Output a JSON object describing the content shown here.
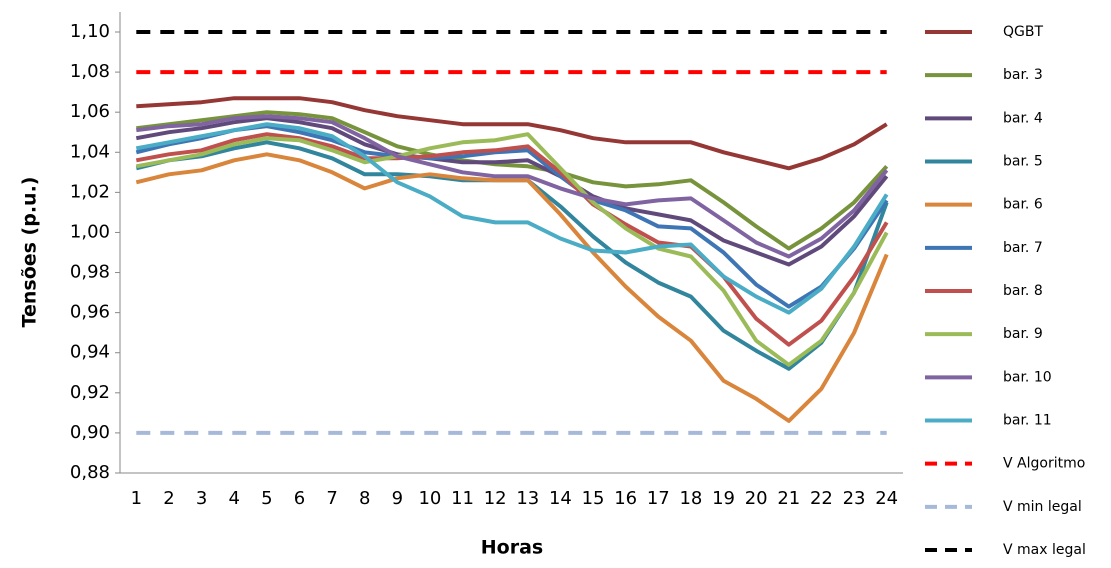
{
  "chart_data": {
    "type": "line",
    "xlabel": "Horas",
    "ylabel": "Tensões (p.u.)",
    "categories": [
      "1",
      "2",
      "3",
      "4",
      "5",
      "6",
      "7",
      "8",
      "9",
      "10",
      "11",
      "12",
      "13",
      "14",
      "15",
      "16",
      "17",
      "18",
      "19",
      "20",
      "21",
      "22",
      "23",
      "24"
    ],
    "ylim": [
      0.88,
      1.1
    ],
    "yticks": [
      {
        "value": 0.88,
        "label": "0,88"
      },
      {
        "value": 0.9,
        "label": "0,90"
      },
      {
        "value": 0.92,
        "label": "0,92"
      },
      {
        "value": 0.94,
        "label": "0,94"
      },
      {
        "value": 0.96,
        "label": "0,96"
      },
      {
        "value": 0.98,
        "label": "0,98"
      },
      {
        "value": 1.0,
        "label": "1,00"
      },
      {
        "value": 1.02,
        "label": "1,02"
      },
      {
        "value": 1.04,
        "label": "1,04"
      },
      {
        "value": 1.06,
        "label": "1,06"
      },
      {
        "value": 1.08,
        "label": "1,08"
      },
      {
        "value": 1.1,
        "label": "1,10"
      }
    ],
    "legend": "right",
    "series": [
      {
        "name": "QGBT",
        "color": "#953735",
        "values": [
          1.063,
          1.064,
          1.065,
          1.067,
          1.067,
          1.067,
          1.065,
          1.061,
          1.058,
          1.056,
          1.054,
          1.054,
          1.054,
          1.051,
          1.047,
          1.045,
          1.045,
          1.045,
          1.04,
          1.036,
          1.032,
          1.037,
          1.044,
          1.054
        ]
      },
      {
        "name": "bar. 3",
        "color": "#77933c",
        "values": [
          1.052,
          1.054,
          1.056,
          1.058,
          1.06,
          1.059,
          1.057,
          1.05,
          1.043,
          1.039,
          1.036,
          1.034,
          1.033,
          1.03,
          1.025,
          1.023,
          1.024,
          1.026,
          1.015,
          1.003,
          0.992,
          1.002,
          1.015,
          1.033
        ]
      },
      {
        "name": "bar. 4",
        "color": "#604a7b",
        "values": [
          1.047,
          1.05,
          1.052,
          1.055,
          1.057,
          1.055,
          1.052,
          1.044,
          1.039,
          1.037,
          1.035,
          1.035,
          1.036,
          1.028,
          1.018,
          1.012,
          1.009,
          1.006,
          0.996,
          0.99,
          0.984,
          0.993,
          1.008,
          1.028
        ]
      },
      {
        "name": "bar. 5",
        "color": "#31859c",
        "values": [
          1.032,
          1.036,
          1.038,
          1.042,
          1.045,
          1.042,
          1.037,
          1.029,
          1.029,
          1.028,
          1.026,
          1.026,
          1.026,
          1.013,
          0.998,
          0.985,
          0.975,
          0.968,
          0.951,
          0.941,
          0.932,
          0.945,
          0.97,
          1.015
        ]
      },
      {
        "name": "bar. 6",
        "color": "#d9853b",
        "values": [
          1.025,
          1.029,
          1.031,
          1.036,
          1.039,
          1.036,
          1.03,
          1.022,
          1.027,
          1.029,
          1.027,
          1.026,
          1.026,
          1.009,
          0.99,
          0.973,
          0.958,
          0.946,
          0.926,
          0.917,
          0.906,
          0.922,
          0.95,
          0.989
        ]
      },
      {
        "name": "bar. 7",
        "color": "#3e75b5",
        "values": [
          1.04,
          1.044,
          1.047,
          1.051,
          1.053,
          1.05,
          1.046,
          1.04,
          1.038,
          1.037,
          1.038,
          1.04,
          1.041,
          1.028,
          1.016,
          1.011,
          1.003,
          1.002,
          0.99,
          0.974,
          0.963,
          0.973,
          0.992,
          1.016
        ]
      },
      {
        "name": "bar. 8",
        "color": "#c0504d",
        "values": [
          1.036,
          1.039,
          1.041,
          1.046,
          1.049,
          1.047,
          1.043,
          1.037,
          1.037,
          1.038,
          1.04,
          1.041,
          1.043,
          1.03,
          1.014,
          1.004,
          0.995,
          0.993,
          0.978,
          0.957,
          0.944,
          0.956,
          0.978,
          1.005
        ]
      },
      {
        "name": "bar. 9",
        "color": "#9bbb59",
        "values": [
          1.033,
          1.036,
          1.039,
          1.044,
          1.047,
          1.046,
          1.041,
          1.035,
          1.038,
          1.042,
          1.045,
          1.046,
          1.049,
          1.032,
          1.015,
          1.002,
          0.992,
          0.988,
          0.971,
          0.946,
          0.934,
          0.946,
          0.97,
          1.0
        ]
      },
      {
        "name": "bar. 10",
        "color": "#8064a2",
        "values": [
          1.051,
          1.053,
          1.054,
          1.057,
          1.058,
          1.057,
          1.055,
          1.047,
          1.038,
          1.034,
          1.03,
          1.028,
          1.028,
          1.022,
          1.017,
          1.014,
          1.016,
          1.017,
          1.006,
          0.995,
          0.988,
          0.997,
          1.011,
          1.031
        ]
      },
      {
        "name": "bar. 11",
        "color": "#4bacc6",
        "values": [
          1.042,
          1.045,
          1.048,
          1.051,
          1.054,
          1.052,
          1.048,
          1.038,
          1.025,
          1.018,
          1.008,
          1.005,
          1.005,
          0.997,
          0.991,
          0.99,
          0.993,
          0.994,
          0.978,
          0.968,
          0.96,
          0.972,
          0.993,
          1.019
        ]
      },
      {
        "name": "V Algoritmo",
        "color": "#ff0000",
        "style": "dashed",
        "values": [
          1.08,
          1.08,
          1.08,
          1.08,
          1.08,
          1.08,
          1.08,
          1.08,
          1.08,
          1.08,
          1.08,
          1.08,
          1.08,
          1.08,
          1.08,
          1.08,
          1.08,
          1.08,
          1.08,
          1.08,
          1.08,
          1.08,
          1.08,
          1.08
        ]
      },
      {
        "name": "V min legal",
        "color": "#a6b9d8",
        "style": "dashed",
        "values": [
          0.9,
          0.9,
          0.9,
          0.9,
          0.9,
          0.9,
          0.9,
          0.9,
          0.9,
          0.9,
          0.9,
          0.9,
          0.9,
          0.9,
          0.9,
          0.9,
          0.9,
          0.9,
          0.9,
          0.9,
          0.9,
          0.9,
          0.9,
          0.9
        ]
      },
      {
        "name": "V max legal",
        "color": "#000000",
        "style": "dashed",
        "values": [
          1.1,
          1.1,
          1.1,
          1.1,
          1.1,
          1.1,
          1.1,
          1.1,
          1.1,
          1.1,
          1.1,
          1.1,
          1.1,
          1.1,
          1.1,
          1.1,
          1.1,
          1.1,
          1.1,
          1.1,
          1.1,
          1.1,
          1.1,
          1.1
        ]
      }
    ]
  }
}
